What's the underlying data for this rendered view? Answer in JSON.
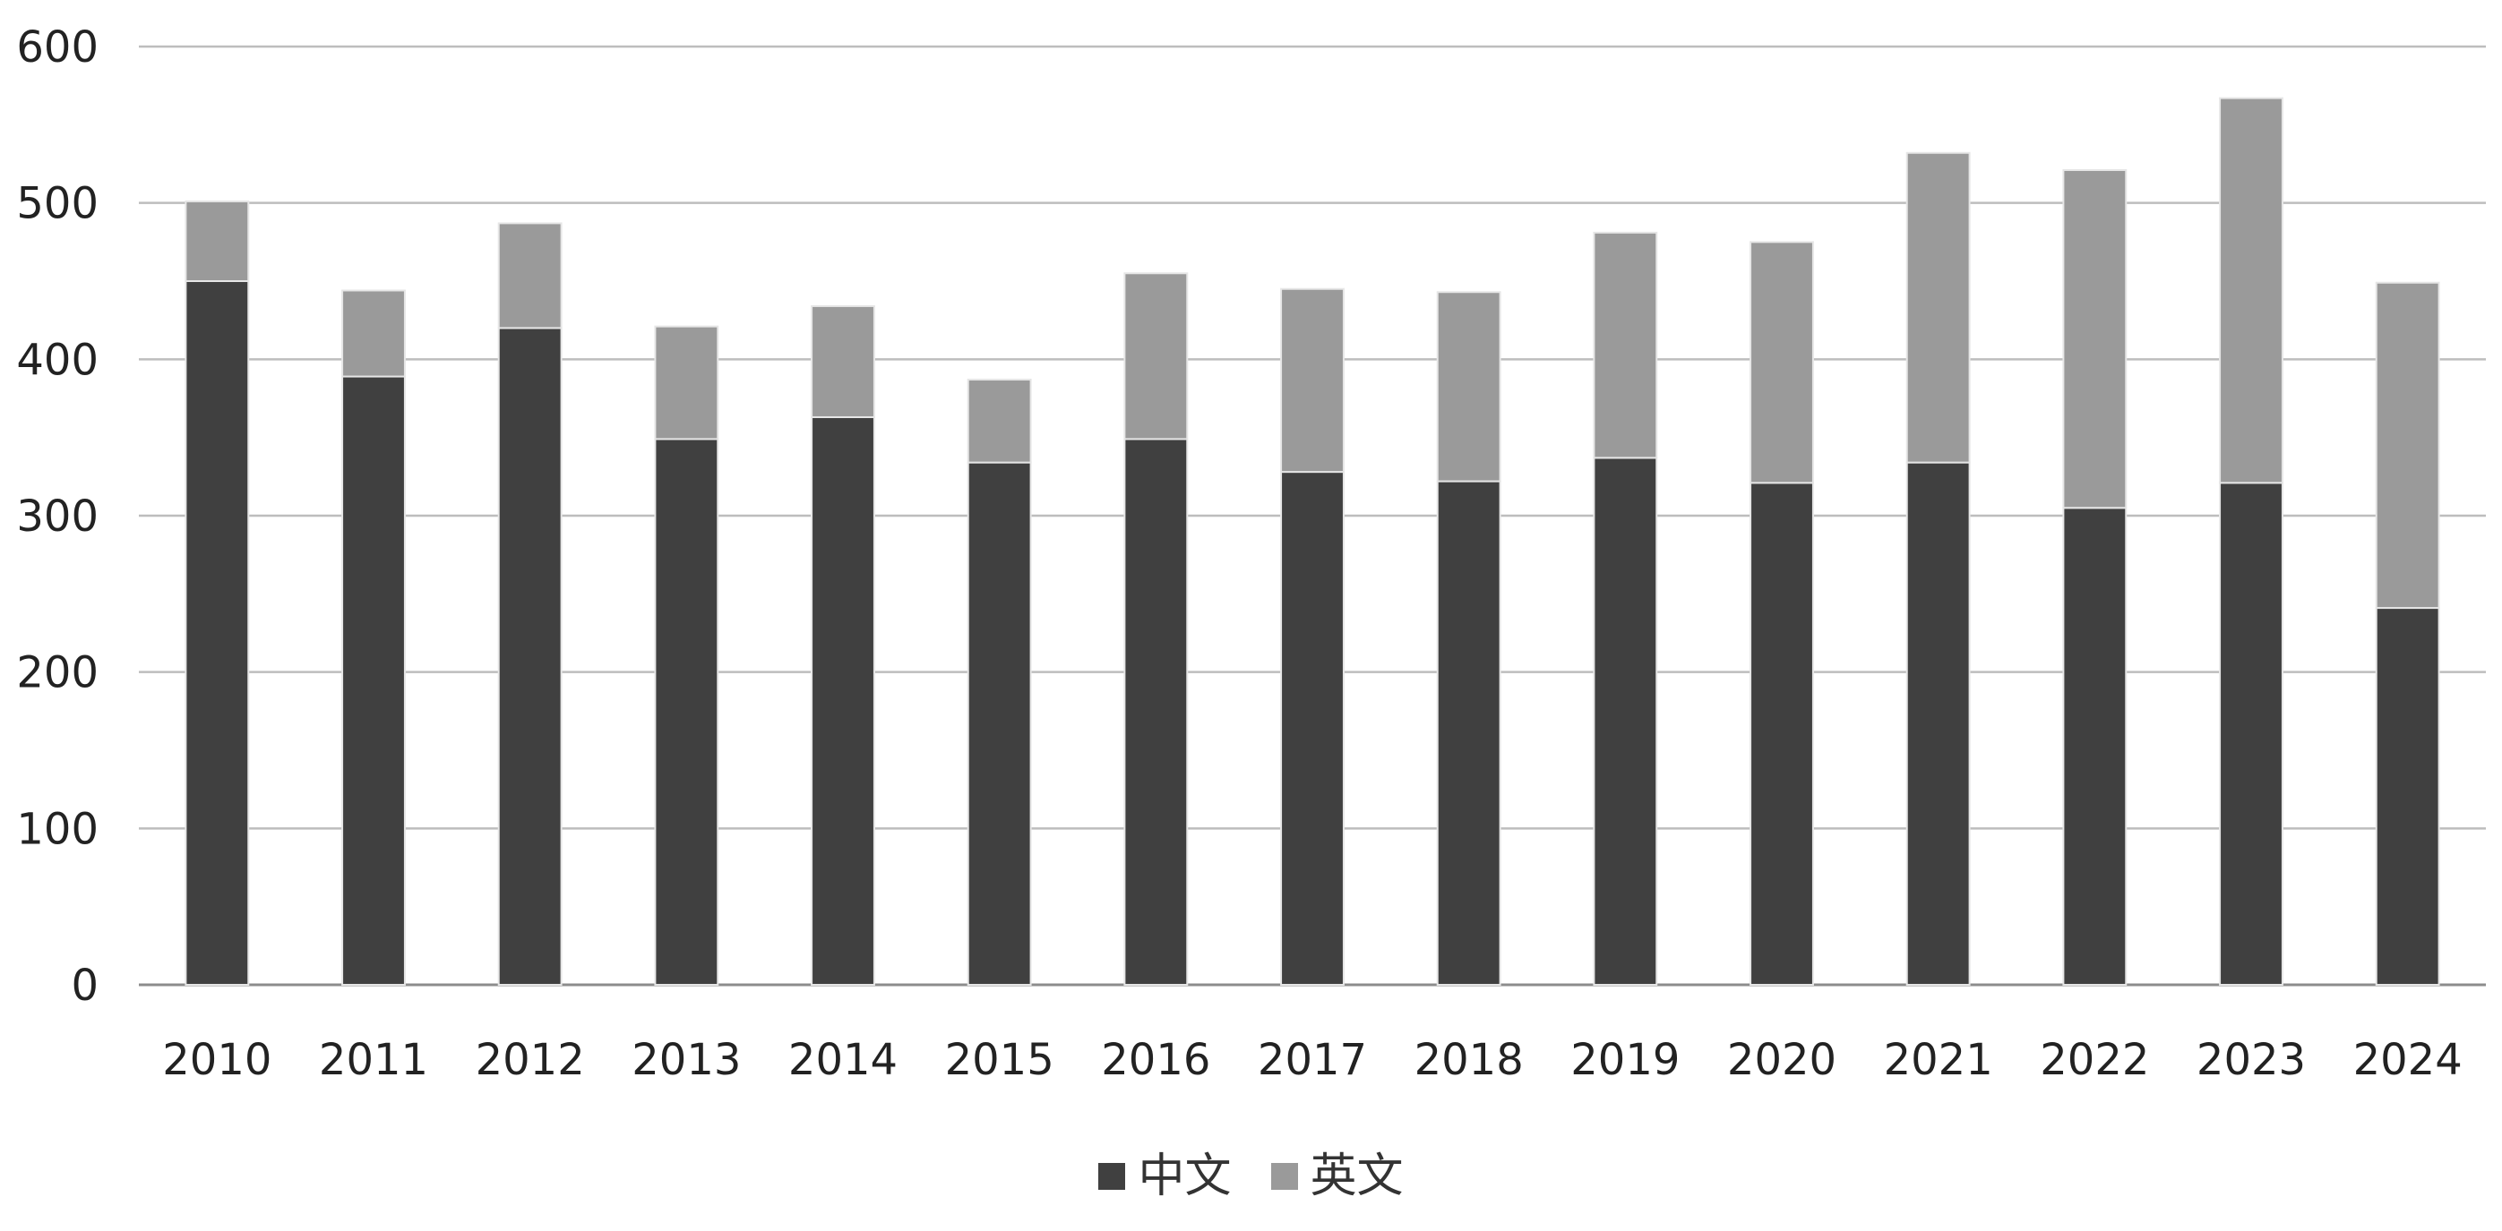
{
  "chart_data": {
    "type": "bar",
    "stacked": true,
    "categories": [
      "2010",
      "2011",
      "2012",
      "2013",
      "2014",
      "2015",
      "2016",
      "2017",
      "2018",
      "2019",
      "2020",
      "2021",
      "2022",
      "2023",
      "2024"
    ],
    "series": [
      {
        "name": "中文",
        "color": "#404040",
        "values": [
          450,
          389,
          420,
          349,
          363,
          334,
          349,
          328,
          322,
          337,
          321,
          334,
          305,
          321,
          241
        ]
      },
      {
        "name": "英文",
        "color": "#9a9a9a",
        "values": [
          51,
          55,
          67,
          72,
          71,
          53,
          106,
          117,
          121,
          144,
          154,
          198,
          216,
          246,
          208
        ]
      }
    ],
    "yticks": [
      "0",
      "100",
      "200",
      "300",
      "400",
      "500",
      "600"
    ],
    "ylim": [
      0,
      600
    ],
    "grid": true,
    "legend_position": "bottom"
  }
}
